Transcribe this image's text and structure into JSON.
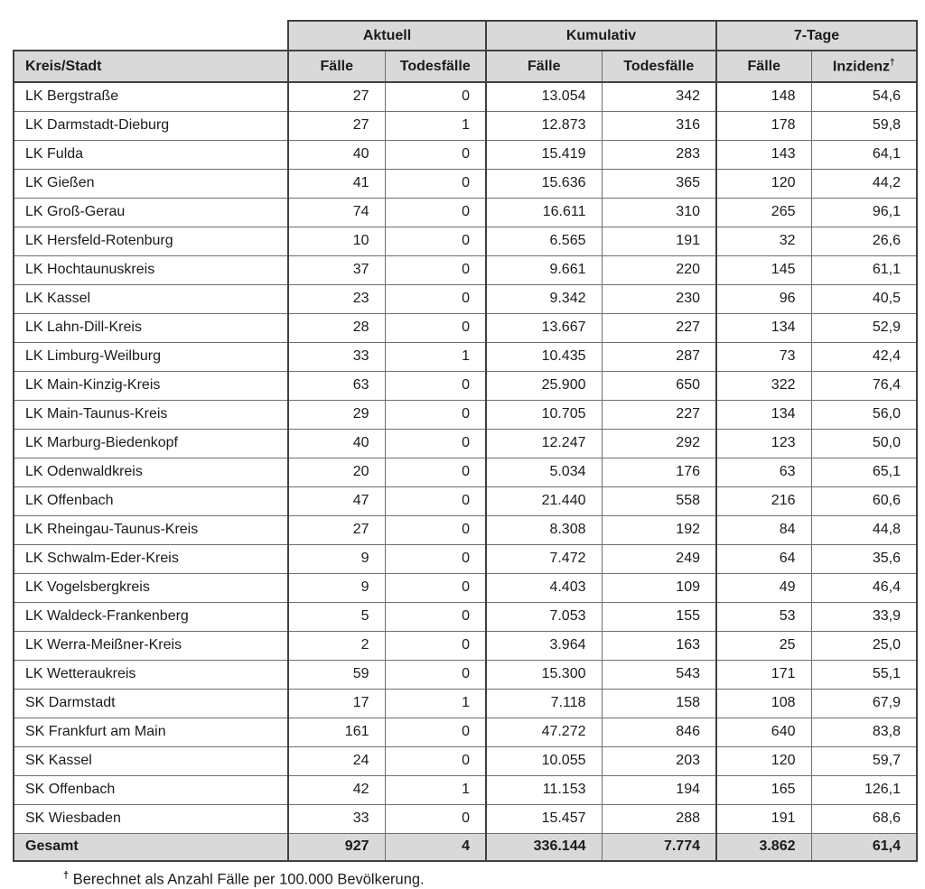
{
  "table": {
    "row_header": "Kreis/Stadt",
    "groups": [
      {
        "label": "Aktuell",
        "columns": [
          "Fälle",
          "Todesfälle"
        ]
      },
      {
        "label": "Kumulativ",
        "columns": [
          "Fälle",
          "Todesfälle"
        ]
      },
      {
        "label": "7-Tage",
        "columns": [
          "Fälle",
          "Inzidenz"
        ]
      }
    ],
    "inzidenz_sup": "†",
    "rows": [
      {
        "name": "LK Bergstraße",
        "values": [
          "27",
          "0",
          "13.054",
          "342",
          "148",
          "54,6"
        ]
      },
      {
        "name": "LK Darmstadt-Dieburg",
        "values": [
          "27",
          "1",
          "12.873",
          "316",
          "178",
          "59,8"
        ]
      },
      {
        "name": "LK Fulda",
        "values": [
          "40",
          "0",
          "15.419",
          "283",
          "143",
          "64,1"
        ]
      },
      {
        "name": "LK Gießen",
        "values": [
          "41",
          "0",
          "15.636",
          "365",
          "120",
          "44,2"
        ]
      },
      {
        "name": "LK Groß-Gerau",
        "values": [
          "74",
          "0",
          "16.611",
          "310",
          "265",
          "96,1"
        ]
      },
      {
        "name": "LK Hersfeld-Rotenburg",
        "values": [
          "10",
          "0",
          "6.565",
          "191",
          "32",
          "26,6"
        ]
      },
      {
        "name": "LK Hochtaunuskreis",
        "values": [
          "37",
          "0",
          "9.661",
          "220",
          "145",
          "61,1"
        ]
      },
      {
        "name": "LK Kassel",
        "values": [
          "23",
          "0",
          "9.342",
          "230",
          "96",
          "40,5"
        ]
      },
      {
        "name": "LK Lahn-Dill-Kreis",
        "values": [
          "28",
          "0",
          "13.667",
          "227",
          "134",
          "52,9"
        ]
      },
      {
        "name": "LK Limburg-Weilburg",
        "values": [
          "33",
          "1",
          "10.435",
          "287",
          "73",
          "42,4"
        ]
      },
      {
        "name": "LK Main-Kinzig-Kreis",
        "values": [
          "63",
          "0",
          "25.900",
          "650",
          "322",
          "76,4"
        ]
      },
      {
        "name": "LK Main-Taunus-Kreis",
        "values": [
          "29",
          "0",
          "10.705",
          "227",
          "134",
          "56,0"
        ]
      },
      {
        "name": "LK Marburg-Biedenkopf",
        "values": [
          "40",
          "0",
          "12.247",
          "292",
          "123",
          "50,0"
        ]
      },
      {
        "name": "LK Odenwaldkreis",
        "values": [
          "20",
          "0",
          "5.034",
          "176",
          "63",
          "65,1"
        ]
      },
      {
        "name": "LK Offenbach",
        "values": [
          "47",
          "0",
          "21.440",
          "558",
          "216",
          "60,6"
        ]
      },
      {
        "name": "LK Rheingau-Taunus-Kreis",
        "values": [
          "27",
          "0",
          "8.308",
          "192",
          "84",
          "44,8"
        ]
      },
      {
        "name": "LK Schwalm-Eder-Kreis",
        "values": [
          "9",
          "0",
          "7.472",
          "249",
          "64",
          "35,6"
        ]
      },
      {
        "name": "LK Vogelsbergkreis",
        "values": [
          "9",
          "0",
          "4.403",
          "109",
          "49",
          "46,4"
        ]
      },
      {
        "name": "LK Waldeck-Frankenberg",
        "values": [
          "5",
          "0",
          "7.053",
          "155",
          "53",
          "33,9"
        ]
      },
      {
        "name": "LK Werra-Meißner-Kreis",
        "values": [
          "2",
          "0",
          "3.964",
          "163",
          "25",
          "25,0"
        ]
      },
      {
        "name": "LK Wetteraukreis",
        "values": [
          "59",
          "0",
          "15.300",
          "543",
          "171",
          "55,1"
        ]
      },
      {
        "name": "SK Darmstadt",
        "values": [
          "17",
          "1",
          "7.118",
          "158",
          "108",
          "67,9"
        ]
      },
      {
        "name": "SK Frankfurt am Main",
        "values": [
          "161",
          "0",
          "47.272",
          "846",
          "640",
          "83,8"
        ]
      },
      {
        "name": "SK Kassel",
        "values": [
          "24",
          "0",
          "10.055",
          "203",
          "120",
          "59,7"
        ]
      },
      {
        "name": "SK Offenbach",
        "values": [
          "42",
          "1",
          "11.153",
          "194",
          "165",
          "126,1"
        ]
      },
      {
        "name": "SK Wiesbaden",
        "values": [
          "33",
          "0",
          "15.457",
          "288",
          "191",
          "68,6"
        ]
      }
    ],
    "total_row": {
      "name": "Gesamt",
      "values": [
        "927",
        "4",
        "336.144",
        "7.774",
        "3.862",
        "61,4"
      ]
    }
  },
  "footnote": {
    "marker": "†",
    "text": "Berechnet als Anzahl Fälle per 100.000 Bevölkerung."
  },
  "colors": {
    "header_fill": "#d9d9d9",
    "border_dark": "#404040",
    "border_light": "#6e6e6e"
  }
}
